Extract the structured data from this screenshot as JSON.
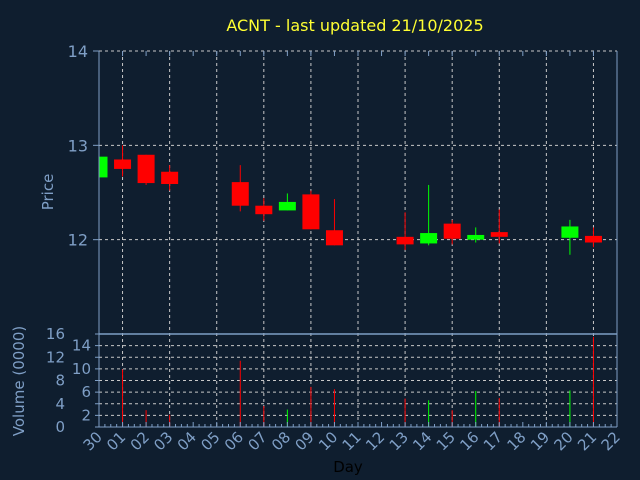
{
  "chart_data": [
    {
      "type": "candlestick",
      "title": "ACNT - last updated 21/10/2025",
      "xlabel": "Day",
      "ylabel": "Price",
      "ylim": [
        11,
        14
      ],
      "yticks": [
        "12",
        "13",
        "14"
      ],
      "grid": true,
      "categories": [
        "30",
        "01",
        "02",
        "03",
        "04",
        "05",
        "06",
        "07",
        "08",
        "09",
        "10",
        "11",
        "12",
        "13",
        "14",
        "15",
        "16",
        "17",
        "18",
        "19",
        "20",
        "21",
        "22"
      ],
      "candles": [
        {
          "day": "30",
          "open": 12.66,
          "high": 12.88,
          "low": 12.66,
          "close": 12.88
        },
        {
          "day": "01",
          "open": 12.85,
          "high": 13.0,
          "low": 12.67,
          "close": 12.75
        },
        {
          "day": "02",
          "open": 12.9,
          "high": 12.9,
          "low": 12.58,
          "close": 12.6
        },
        {
          "day": "03",
          "open": 12.72,
          "high": 12.79,
          "low": 12.52,
          "close": 12.59
        },
        {
          "day": "06",
          "open": 12.61,
          "high": 12.79,
          "low": 12.3,
          "close": 12.36
        },
        {
          "day": "07",
          "open": 12.36,
          "high": 12.44,
          "low": 12.2,
          "close": 12.27
        },
        {
          "day": "08",
          "open": 12.31,
          "high": 12.49,
          "low": 12.31,
          "close": 12.4
        },
        {
          "day": "09",
          "open": 12.48,
          "high": 12.52,
          "low": 12.11,
          "close": 12.11
        },
        {
          "day": "10",
          "open": 12.1,
          "high": 12.43,
          "low": 11.94,
          "close": 11.94
        },
        {
          "day": "13",
          "open": 12.03,
          "high": 12.29,
          "low": 11.89,
          "close": 11.95
        },
        {
          "day": "14",
          "open": 11.96,
          "high": 12.58,
          "low": 11.94,
          "close": 12.07
        },
        {
          "day": "15",
          "open": 12.17,
          "high": 12.21,
          "low": 11.95,
          "close": 12.01
        },
        {
          "day": "16",
          "open": 12.0,
          "high": 12.13,
          "low": 11.97,
          "close": 12.05
        },
        {
          "day": "17",
          "open": 12.08,
          "high": 12.32,
          "low": 11.96,
          "close": 12.03
        },
        {
          "day": "20",
          "open": 12.02,
          "high": 12.21,
          "low": 11.84,
          "close": 12.14
        },
        {
          "day": "21",
          "open": 12.04,
          "high": 12.13,
          "low": 11.92,
          "close": 11.97
        }
      ],
      "up_color": "#00ff00",
      "down_color": "#ff0000"
    },
    {
      "type": "bar",
      "ylabel": "Volume (0000)",
      "ylim": [
        0,
        16
      ],
      "yticks": [
        "0",
        "2",
        "4",
        "6",
        "8",
        "10",
        "12",
        "14",
        "16"
      ],
      "grid": true,
      "volumes": [
        {
          "day": "01",
          "value": 9.9,
          "dir": "down"
        },
        {
          "day": "02",
          "value": 2.9,
          "dir": "down"
        },
        {
          "day": "03",
          "value": 2.1,
          "dir": "down"
        },
        {
          "day": "06",
          "value": 11.4,
          "dir": "down"
        },
        {
          "day": "07",
          "value": 3.6,
          "dir": "down"
        },
        {
          "day": "08",
          "value": 3.0,
          "dir": "up"
        },
        {
          "day": "09",
          "value": 6.9,
          "dir": "down"
        },
        {
          "day": "10",
          "value": 6.5,
          "dir": "down"
        },
        {
          "day": "13",
          "value": 4.9,
          "dir": "down"
        },
        {
          "day": "14",
          "value": 4.6,
          "dir": "up"
        },
        {
          "day": "15",
          "value": 2.9,
          "dir": "down"
        },
        {
          "day": "16",
          "value": 6.2,
          "dir": "up"
        },
        {
          "day": "17",
          "value": 5.0,
          "dir": "down"
        },
        {
          "day": "20",
          "value": 6.3,
          "dir": "up"
        },
        {
          "day": "21",
          "value": 15.5,
          "dir": "down"
        }
      ]
    }
  ],
  "colors": {
    "background": "#0f1e2f",
    "axis": "#7f9fc6",
    "title": "#ffff33",
    "grid": "#c8c8c8"
  }
}
